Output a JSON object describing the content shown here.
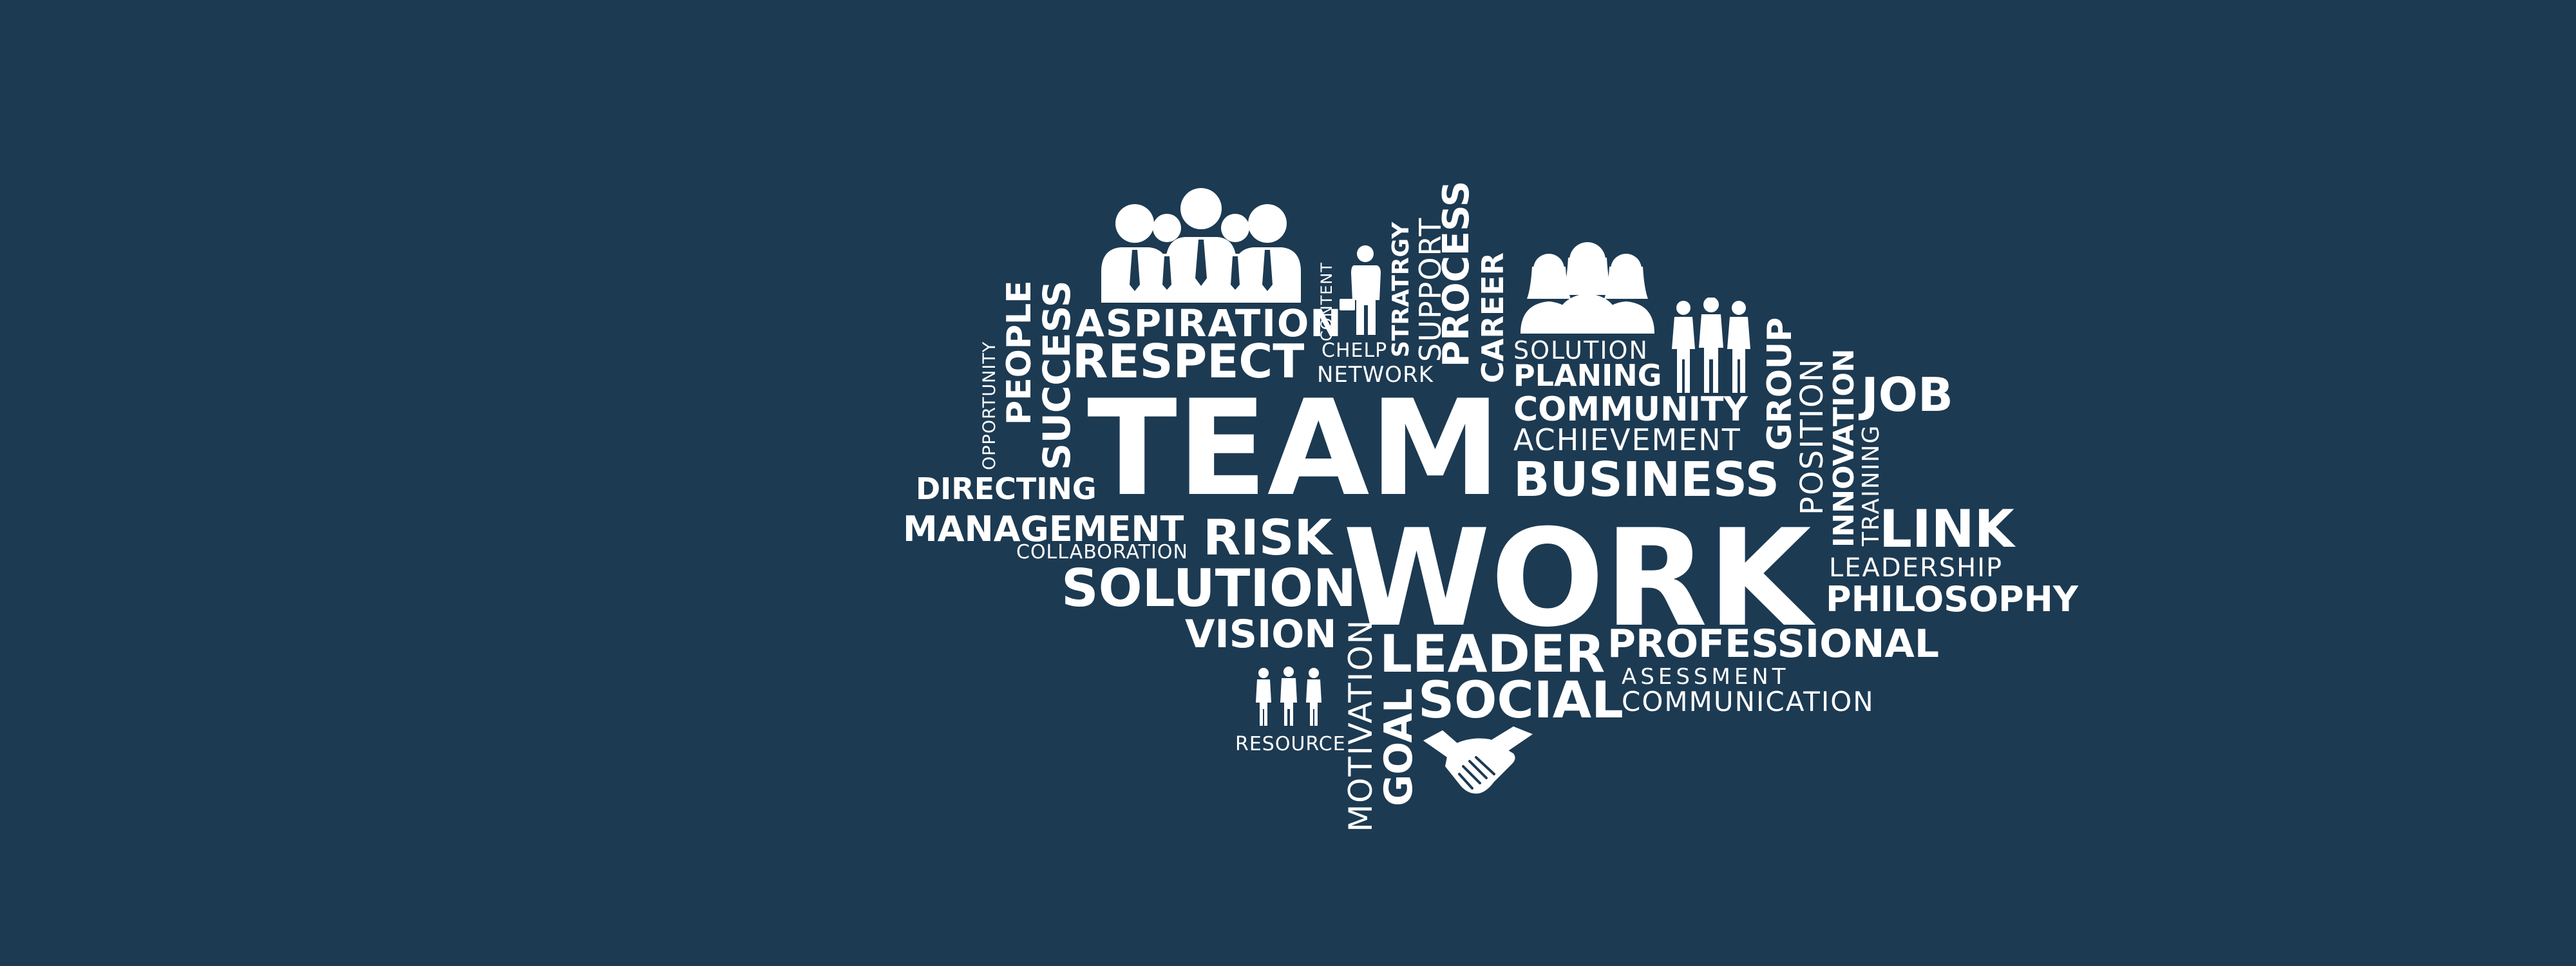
{
  "background_color": "#1c3a52",
  "text_color": "#ffffff",
  "words": {
    "team": "TEAM",
    "work": "WORK",
    "aspiration": "ASPIRATION",
    "respect": "RESPECT",
    "success": "SUCCESS",
    "people": "PEOPLE",
    "opportunity": "OPPORTUNITY",
    "directing": "DIRECTING",
    "management": "MANAGEMENT",
    "collaboration": "COLLABORATION",
    "risk": "RISK",
    "solution_main": "SOLUTION",
    "vision": "VISION",
    "resource": "RESOURCE",
    "motivation": "MOTIVATION",
    "goal": "GOAL",
    "leader": "LEADER",
    "social": "SOCIAL",
    "content": "CONTENT",
    "chelp": "CHELP",
    "network": "NETWORK",
    "stratrgy": "STRATRGY",
    "support": "SUPPORT",
    "process": "PROCESS",
    "career": "CAREER",
    "solution_small": "SOLUTION",
    "planing": "PLANING",
    "community": "COMMUNITY",
    "achievement": "ACHIEVEMENT",
    "business": "BUSINESS",
    "group": "GROUP",
    "position": "POSITION",
    "innovation": "INNOVATION",
    "training": "TRAINING",
    "job": "JOB",
    "link": "LINK",
    "leadership": "LEADERSHIP",
    "philosophy": "PHILOSOPHY",
    "professional": "PROFESSIONAL",
    "asessment": "ASESSMENT",
    "communication": "COMMUNICATION"
  },
  "icons": [
    "business-team-icon",
    "businessman-briefcase-icon",
    "women-group-icon",
    "standing-group-icon",
    "small-people-icon",
    "handshake-icon"
  ]
}
